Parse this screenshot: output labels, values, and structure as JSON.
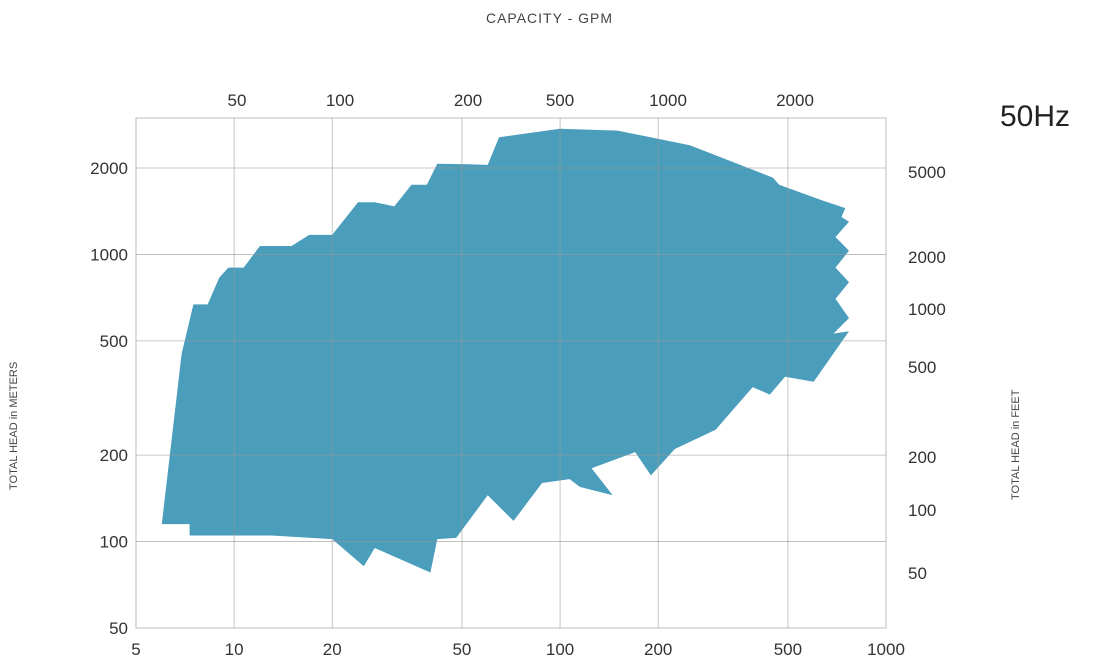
{
  "header": {
    "top_axis_label": "CAPACITY - GPM",
    "frequency_label": "50Hz"
  },
  "axes": {
    "left_label": "TOTAL HEAD in METERS",
    "right_label": "TOTAL HEAD in FEET"
  },
  "chart_data": {
    "type": "area",
    "title": "",
    "x_scale": "log",
    "y_scale": "log",
    "xlabel": "",
    "ylabel": "TOTAL HEAD in METERS",
    "xlim": [
      5,
      1000
    ],
    "ylim": [
      50,
      3000
    ],
    "grid": true,
    "fill_color": "#4a9dbb",
    "x_ticks": [
      "5",
      "10",
      "20",
      "50",
      "100",
      "200",
      "500",
      "1000"
    ],
    "y_ticks": [
      "50",
      "100",
      "200",
      "500",
      "1000",
      "2000"
    ],
    "top_ticks": [
      "50",
      "100",
      "200",
      "500",
      "1000",
      "2000"
    ],
    "right_ticks": [
      "50",
      "100",
      "200",
      "500",
      "1000",
      "2000",
      "5000"
    ],
    "region_outline": [
      [
        6,
        115
      ],
      [
        6.9,
        450
      ],
      [
        7.5,
        670
      ],
      [
        8.3,
        670
      ],
      [
        9,
        830
      ],
      [
        9.6,
        900
      ],
      [
        10.7,
        900
      ],
      [
        12,
        1070
      ],
      [
        15,
        1070
      ],
      [
        17,
        1170
      ],
      [
        20,
        1170
      ],
      [
        24,
        1520
      ],
      [
        27,
        1520
      ],
      [
        31,
        1470
      ],
      [
        35,
        1750
      ],
      [
        39,
        1750
      ],
      [
        42,
        2070
      ],
      [
        52,
        2060
      ],
      [
        60,
        2050
      ],
      [
        65,
        2560
      ],
      [
        100,
        2740
      ],
      [
        150,
        2700
      ],
      [
        250,
        2400
      ],
      [
        450,
        1850
      ],
      [
        470,
        1750
      ],
      [
        640,
        1540
      ],
      [
        750,
        1450
      ],
      [
        730,
        1350
      ],
      [
        770,
        1300
      ],
      [
        700,
        1150
      ],
      [
        770,
        1030
      ],
      [
        700,
        900
      ],
      [
        770,
        800
      ],
      [
        700,
        700
      ],
      [
        770,
        600
      ],
      [
        690,
        530
      ],
      [
        770,
        540
      ],
      [
        600,
        360
      ],
      [
        490,
        375
      ],
      [
        440,
        325
      ],
      [
        390,
        345
      ],
      [
        300,
        245
      ],
      [
        225,
        210
      ],
      [
        190,
        170
      ],
      [
        170,
        205
      ],
      [
        125,
        180
      ],
      [
        145,
        145
      ],
      [
        115,
        155
      ],
      [
        107,
        165
      ],
      [
        88,
        160
      ],
      [
        72,
        118
      ],
      [
        60,
        145
      ],
      [
        48,
        103
      ],
      [
        42,
        102
      ],
      [
        40,
        78
      ],
      [
        27,
        95
      ],
      [
        25,
        82
      ],
      [
        20,
        102
      ],
      [
        13,
        105
      ],
      [
        7.3,
        105
      ],
      [
        7.3,
        115
      ]
    ]
  }
}
